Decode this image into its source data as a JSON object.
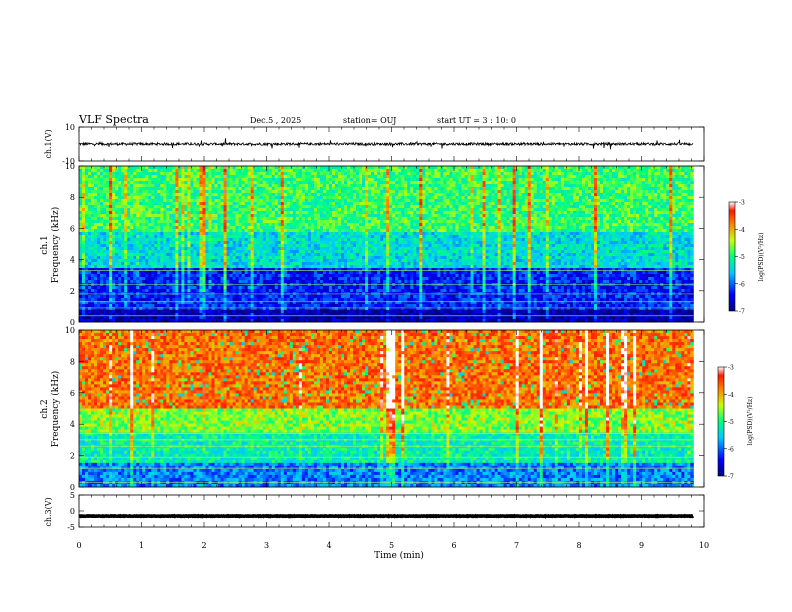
{
  "header": {
    "title": "VLF Spectra",
    "date": "Dec.5 , 2025",
    "station": "station= OUJ",
    "start": "start UT = 3 : 10: 0"
  },
  "colors": {
    "frame": "#000000",
    "colormap": [
      "#000080",
      "#0000ff",
      "#00c8ff",
      "#00ff80",
      "#c8ff00",
      "#ff8000",
      "#ff1a00",
      "#ffffff"
    ]
  },
  "chart_data": [
    {
      "type": "line",
      "name": "ch1-waveform",
      "ylabel": "ch.1(V)",
      "ylim": [
        -10,
        10
      ],
      "yticks": [
        "10",
        "-10"
      ],
      "description_values": {
        "baseline_v": 0,
        "amplitude_v": 1.5
      }
    },
    {
      "type": "heatmap",
      "name": "ch1-spectrogram",
      "ylabel_line1": "ch.1",
      "ylabel_line2": "Frequency (kHz)",
      "ylim": [
        0,
        10
      ],
      "yticks": [
        "0",
        "2",
        "4",
        "6",
        "8",
        "10"
      ],
      "xlim": [
        0,
        9.8
      ],
      "colorbar": {
        "label": "log(PSD)(V²/Hz)",
        "range": [
          -7,
          -3
        ],
        "ticks": [
          "-3",
          "-4",
          "-5",
          "-6",
          "-7"
        ]
      },
      "band_levels": [
        {
          "f_range": [
            0,
            0.8
          ],
          "level": -6.8
        },
        {
          "f_range": [
            0.8,
            3.5
          ],
          "level": -6.3
        },
        {
          "f_range": [
            3.5,
            5.8
          ],
          "level": -5.4
        },
        {
          "f_range": [
            5.8,
            10
          ],
          "level": -4.9
        }
      ]
    },
    {
      "type": "heatmap",
      "name": "ch2-spectrogram",
      "ylabel_line1": "ch.2",
      "ylabel_line2": "Frequency (kHz)",
      "ylim": [
        0,
        10
      ],
      "yticks": [
        "0",
        "2",
        "4",
        "6",
        "8",
        "10"
      ],
      "xlim": [
        0,
        9.8
      ],
      "colorbar": {
        "label": "log(PSD)(V²/Hz)",
        "range": [
          -7,
          -3
        ],
        "ticks": [
          "-3",
          "-4",
          "-5",
          "-6",
          "-7"
        ]
      },
      "band_levels": [
        {
          "f_range": [
            0,
            1.5
          ],
          "level": -5.9
        },
        {
          "f_range": [
            1.5,
            3.5
          ],
          "level": -5.2
        },
        {
          "f_range": [
            3.5,
            5
          ],
          "level": -4.6
        },
        {
          "f_range": [
            5,
            10
          ],
          "level": -3.7
        }
      ]
    },
    {
      "type": "line",
      "name": "ch3-waveform",
      "ylabel": "ch.3(V)",
      "ylim": [
        -5,
        5
      ],
      "yticks": [
        "5",
        "0",
        "-5"
      ],
      "description_values": {
        "baseline_v": -1.6,
        "amplitude_v": 0.15
      }
    }
  ],
  "x_axis": {
    "label": "Time (min)",
    "range": [
      0,
      10
    ],
    "ticks": [
      "0",
      "1",
      "2",
      "3",
      "4",
      "5",
      "6",
      "7",
      "8",
      "9",
      "10"
    ]
  }
}
